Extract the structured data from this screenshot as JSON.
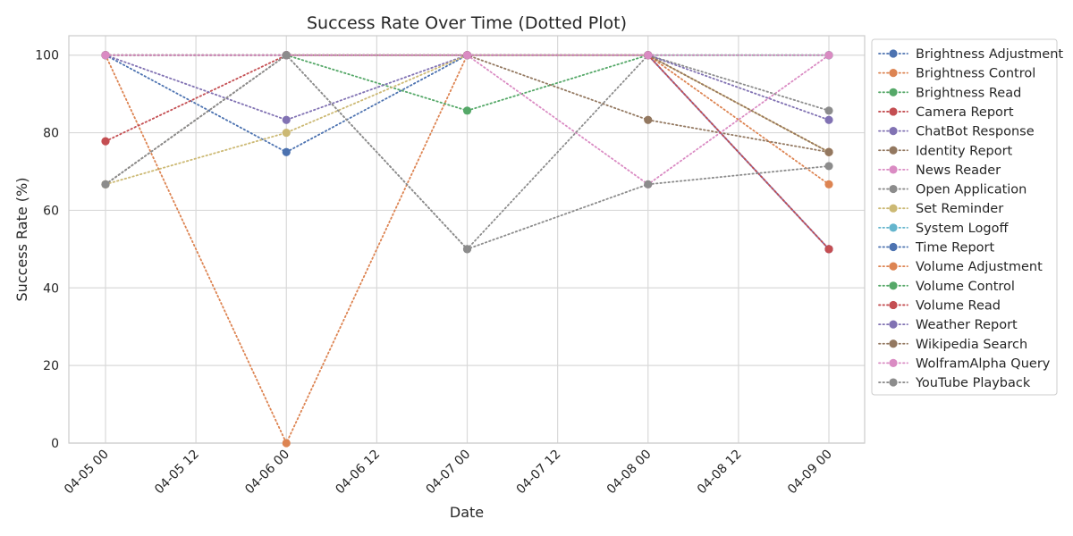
{
  "chart_data": {
    "type": "line",
    "title": "Success Rate Over Time (Dotted Plot)",
    "xlabel": "Date",
    "ylabel": "Success Rate (%)",
    "x": [
      "04-05 00",
      "04-06 00",
      "04-07 00",
      "04-08 00",
      "04-09 00"
    ],
    "x_ticks": [
      "04-05 00",
      "04-05 12",
      "04-06 00",
      "04-06 12",
      "04-07 00",
      "04-07 12",
      "04-08 00",
      "04-08 12",
      "04-09 00"
    ],
    "ylim": [
      0,
      105
    ],
    "y_ticks": [
      0,
      20,
      40,
      60,
      80,
      100
    ],
    "grid": true,
    "line_style": "dotted",
    "marker": "circle",
    "legend_position": "outside-right",
    "series": [
      {
        "name": "Brightness Adjustment",
        "color": "#4c72b0",
        "values": [
          100,
          75,
          100,
          100,
          50
        ]
      },
      {
        "name": "Brightness Control",
        "color": "#dd8452",
        "values": [
          100,
          0,
          100,
          100,
          66.7
        ]
      },
      {
        "name": "Brightness Read",
        "color": "#55a868",
        "values": [
          100,
          100,
          85.7,
          100,
          100
        ]
      },
      {
        "name": "Camera Report",
        "color": "#c44e52",
        "values": [
          77.8,
          100,
          100,
          100,
          50
        ]
      },
      {
        "name": "ChatBot Response",
        "color": "#8172b3",
        "values": [
          100,
          83.3,
          100,
          100,
          50
        ]
      },
      {
        "name": "Identity Report",
        "color": "#937860",
        "values": [
          66.7,
          100,
          100,
          83.3,
          75
        ]
      },
      {
        "name": "News Reader",
        "color": "#da8bc3",
        "values": [
          100,
          100,
          100,
          66.7,
          100
        ]
      },
      {
        "name": "Open Application",
        "color": "#8c8c8c",
        "values": [
          66.7,
          100,
          50,
          100,
          85.7
        ]
      },
      {
        "name": "Set Reminder",
        "color": "#ccb974",
        "values": [
          66.7,
          80,
          100,
          100,
          75
        ]
      },
      {
        "name": "System Logoff",
        "color": "#64b5cd",
        "values": [
          100,
          100,
          100,
          100,
          100
        ]
      },
      {
        "name": "Time Report",
        "color": "#4c72b0",
        "values": [
          100,
          100,
          100,
          100,
          100
        ]
      },
      {
        "name": "Volume Adjustment",
        "color": "#dd8452",
        "values": [
          100,
          100,
          100,
          100,
          75
        ]
      },
      {
        "name": "Volume Control",
        "color": "#55a868",
        "values": [
          100,
          100,
          100,
          100,
          100
        ]
      },
      {
        "name": "Volume Read",
        "color": "#c44e52",
        "values": [
          100,
          100,
          100,
          100,
          50
        ]
      },
      {
        "name": "Weather Report",
        "color": "#8172b3",
        "values": [
          100,
          100,
          100,
          100,
          83.3
        ]
      },
      {
        "name": "Wikipedia Search",
        "color": "#937860",
        "values": [
          100,
          100,
          100,
          100,
          75
        ]
      },
      {
        "name": "WolframAlpha Query",
        "color": "#da8bc3",
        "values": [
          100,
          100,
          100,
          100,
          100
        ]
      },
      {
        "name": "YouTube Playback",
        "color": "#8c8c8c",
        "values": [
          66.7,
          100,
          50,
          66.7,
          71.4
        ]
      }
    ]
  }
}
